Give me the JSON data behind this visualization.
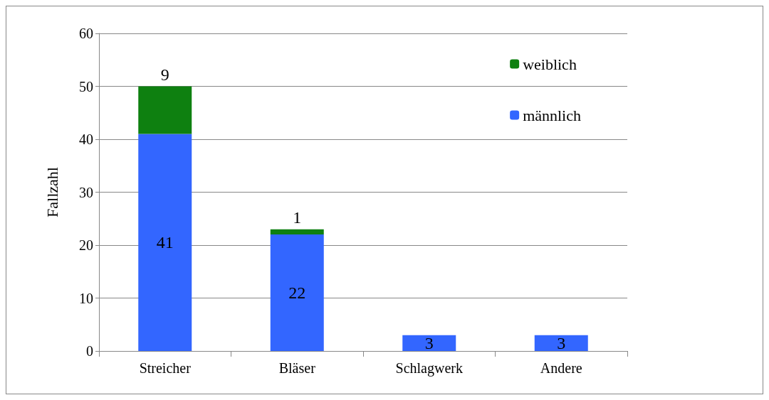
{
  "chart_data": {
    "type": "bar",
    "stacked": true,
    "ylabel": "Fallzahl",
    "categories": [
      "Streicher",
      "Bläser",
      "Schlagwerk",
      "Andere"
    ],
    "series": [
      {
        "name": "männlich",
        "color": "#3366ff",
        "values": [
          41,
          22,
          3,
          3
        ],
        "value_labels": [
          "41",
          "22",
          "3",
          "3"
        ]
      },
      {
        "name": "weiblich",
        "color": "#0e8010",
        "values": [
          9,
          1,
          0,
          0
        ],
        "value_labels": [
          "9",
          "1",
          null,
          null
        ]
      }
    ],
    "ylim": [
      0,
      60
    ],
    "yticks": [
      0,
      10,
      20,
      30,
      40,
      50,
      60
    ],
    "grid": "y",
    "legend": "top right"
  }
}
